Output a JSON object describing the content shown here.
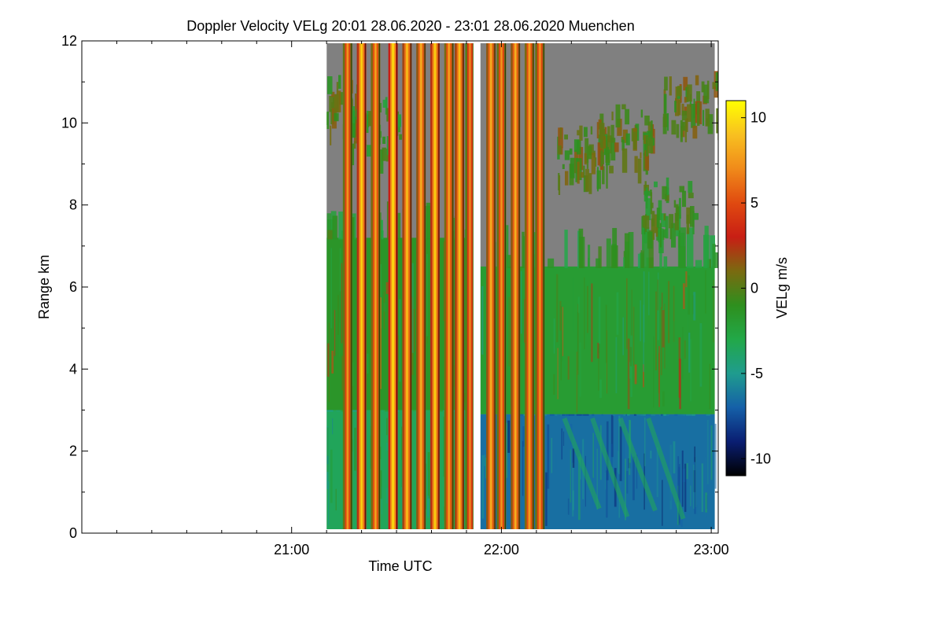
{
  "chart_data": {
    "type": "heatmap",
    "title": "Doppler Velocity VELg   20:01 28.06.2020 - 23:01 28.06.2020 Muenchen",
    "xlabel": "Time UTC",
    "ylabel": "Range km",
    "x_unit": "minutes since 20:00 UTC",
    "xlim": [
      0,
      182
    ],
    "x_ticks": [
      {
        "value": 60,
        "label": "21:00"
      },
      {
        "value": 120,
        "label": "22:00"
      },
      {
        "value": 180,
        "label": "23:00"
      }
    ],
    "x_minor_step": 10,
    "ylim": [
      0,
      12
    ],
    "y_ticks": [
      0,
      2,
      4,
      6,
      8,
      10,
      12
    ],
    "y_minor_step": 1,
    "colorbar": {
      "label": "VELg m/s",
      "range": [
        -11,
        11
      ],
      "ticks": [
        10,
        5,
        0,
        -5,
        -10
      ],
      "colors": [
        "#000000",
        "#0a1e72",
        "#1560a8",
        "#1f9c8e",
        "#22a848",
        "#2e8f1e",
        "#7a6a10",
        "#c81e14",
        "#e04a10",
        "#f08a1a",
        "#f8c020",
        "#ffff00"
      ]
    },
    "no_data_color": "#808080",
    "data_gaps_minutes": [
      [
        0,
        70
      ],
      [
        112,
        114
      ]
    ],
    "background_layers": [
      {
        "t_start": 70,
        "t_end": 112,
        "h_min": 0.0,
        "h_max": 3.0,
        "velocity": -3.5
      },
      {
        "t_start": 70,
        "t_end": 112,
        "h_min": 3.0,
        "h_max": 7.2,
        "velocity": -1.5
      },
      {
        "t_start": 114,
        "t_end": 181,
        "h_min": 0.0,
        "h_max": 2.9,
        "velocity": -6.5
      },
      {
        "t_start": 114,
        "t_end": 181,
        "h_min": 2.9,
        "h_max": 6.5,
        "velocity": -2.0
      }
    ],
    "precipitation_streaks": [
      {
        "t": 76,
        "velocity": 6.5
      },
      {
        "t": 80,
        "velocity": 8.5
      },
      {
        "t": 84,
        "velocity": 7.0
      },
      {
        "t": 89,
        "velocity": 9.0
      },
      {
        "t": 93,
        "velocity": 8.0
      },
      {
        "t": 97,
        "velocity": 7.5
      },
      {
        "t": 101,
        "velocity": 8.5
      },
      {
        "t": 105,
        "velocity": 7.0
      },
      {
        "t": 108,
        "velocity": 8.0
      },
      {
        "t": 111,
        "velocity": 6.0
      },
      {
        "t": 117,
        "velocity": 7.5
      },
      {
        "t": 120,
        "velocity": 6.5
      },
      {
        "t": 124,
        "velocity": 7.5
      },
      {
        "t": 128,
        "velocity": 7.0
      },
      {
        "t": 131,
        "velocity": 6.5
      }
    ],
    "cloud_patches": [
      {
        "t": 71,
        "h": 10.5,
        "velocity": 0.0
      },
      {
        "t": 83,
        "h": 10.0,
        "velocity": -1.0
      },
      {
        "t": 143,
        "h": 9.3,
        "velocity": 0.3
      },
      {
        "t": 155,
        "h": 9.8,
        "velocity": 0.2
      },
      {
        "t": 167,
        "h": 8.0,
        "velocity": -0.8
      },
      {
        "t": 174,
        "h": 10.6,
        "velocity": 0.2
      }
    ]
  }
}
